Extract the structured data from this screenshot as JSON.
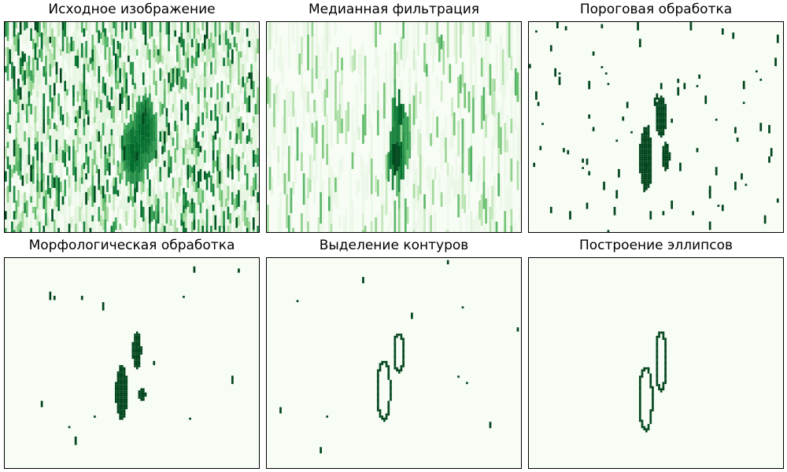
{
  "colors": {
    "background": "#f7fcf5",
    "ink": "#00441b",
    "mid": "#238b45",
    "light": "#a1d99b",
    "frame": "#000000"
  },
  "chart_data": {
    "type": "heatmap",
    "colormap": "Greens",
    "grid": false,
    "axes_ticks": false,
    "grid_size": {
      "cols": 120,
      "rows": 100
    },
    "panels": [
      {
        "title": "Исходное изображение",
        "kind": "noise",
        "density": 0.45,
        "blobs": [
          {
            "cx": 0.55,
            "cy": 0.52,
            "rx": 0.05,
            "ry": 0.18,
            "level": 0.9
          },
          {
            "cx": 0.51,
            "cy": 0.62,
            "rx": 0.05,
            "ry": 0.16,
            "level": 0.9
          }
        ]
      },
      {
        "title": "Медианная фильтрация",
        "kind": "smooth",
        "density": 0.22,
        "blobs": [
          {
            "cx": 0.51,
            "cy": 0.64,
            "rx": 0.035,
            "ry": 0.13,
            "level": 1.0
          },
          {
            "cx": 0.52,
            "cy": 0.44,
            "rx": 0.025,
            "ry": 0.08,
            "level": 0.95
          },
          {
            "cx": 0.55,
            "cy": 0.55,
            "rx": 0.02,
            "ry": 0.12,
            "level": 0.7
          }
        ]
      },
      {
        "title": "Пороговая обработка",
        "kind": "binary",
        "density": 0.03,
        "blobs": [
          {
            "cx": 0.46,
            "cy": 0.65,
            "rx": 0.025,
            "ry": 0.15,
            "level": 1.0
          },
          {
            "cx": 0.52,
            "cy": 0.45,
            "rx": 0.022,
            "ry": 0.1,
            "level": 1.0
          },
          {
            "cx": 0.54,
            "cy": 0.64,
            "rx": 0.015,
            "ry": 0.07,
            "level": 1.0
          }
        ]
      },
      {
        "title": "Морфологическая обработка",
        "kind": "binary",
        "density": 0.0,
        "specks": 14,
        "blobs": [
          {
            "cx": 0.46,
            "cy": 0.64,
            "rx": 0.024,
            "ry": 0.13,
            "level": 1.0
          },
          {
            "cx": 0.52,
            "cy": 0.44,
            "rx": 0.018,
            "ry": 0.09,
            "level": 1.0
          },
          {
            "cx": 0.54,
            "cy": 0.65,
            "rx": 0.015,
            "ry": 0.03,
            "level": 1.0
          }
        ]
      },
      {
        "title": "Выделение контуров",
        "kind": "contour",
        "specks": 12,
        "ellipses": [
          {
            "cx": 0.46,
            "cy": 0.63,
            "rx": 0.025,
            "ry": 0.14
          },
          {
            "cx": 0.52,
            "cy": 0.45,
            "rx": 0.02,
            "ry": 0.09
          }
        ]
      },
      {
        "title": "Построение эллипсов",
        "kind": "ellipse",
        "specks": 0,
        "ellipses": [
          {
            "cx": 0.46,
            "cy": 0.67,
            "rx": 0.025,
            "ry": 0.15
          },
          {
            "cx": 0.52,
            "cy": 0.49,
            "rx": 0.02,
            "ry": 0.14
          }
        ]
      }
    ]
  }
}
